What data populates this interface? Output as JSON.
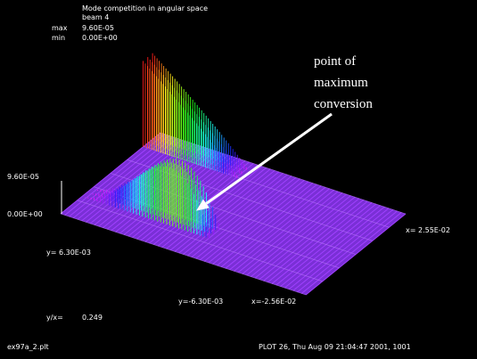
{
  "chart_data": {
    "type": "surface3d",
    "title": "Mode competition in angular space",
    "subtitle": "beam  4",
    "max_label": "max",
    "max_value": "9.60E-05",
    "min_label": "min",
    "min_value": "0.00E+00",
    "z_top_label": "9.60E-05",
    "z_bottom_label": "0.00E+00",
    "x_max_label": "x= 2.55E-02",
    "x_min_label": "x=-2.56E-02",
    "y_max_label": "y= 6.30E-03",
    "y_min_label": "y=-6.30E-03",
    "aspect_label": "y/x=",
    "aspect_value": "0.249",
    "zmin": 0,
    "zmax": 9.6e-05,
    "xlim": [
      -0.0256,
      0.0255
    ],
    "ylim": [
      -0.0063,
      0.0063
    ],
    "beams": [
      {
        "y": 0.0047,
        "x_from": -0.0256,
        "x_to": -0.0056,
        "peak_at": "x_min",
        "peak": 9.6e-05
      },
      {
        "y": -0.003,
        "x_from": -0.0256,
        "x_to": 0.0015,
        "peak_at": "x_max",
        "peak": 7.5e-05
      }
    ],
    "annotation": [
      "point of",
      "maximum",
      "conversion"
    ],
    "annotation_x": -0.0028,
    "annotation_y": -0.003
  },
  "footer": {
    "filename": "ex97a_2.plt",
    "plot_info": "PLOT 26, Thu Aug 09 21:04:47 2001, 1001"
  },
  "colors": {
    "background": "#000000",
    "surface": "#a040ff",
    "text": "#ffffff"
  }
}
